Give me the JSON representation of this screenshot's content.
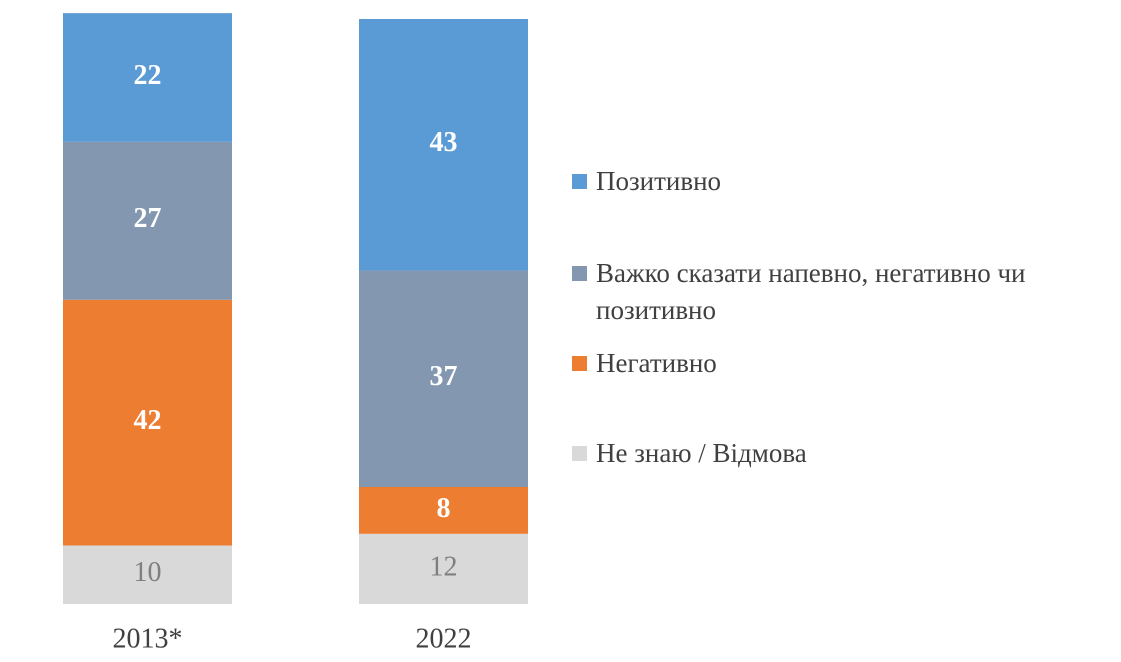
{
  "chart_data": {
    "type": "stacked-bar",
    "categories": [
      "2013*",
      "2022"
    ],
    "series": [
      {
        "name": "Не знаю / Відмова",
        "color": "#d9d9d9",
        "label_color": "#7f7f7f",
        "values": [
          10,
          12
        ]
      },
      {
        "name": "Негативно",
        "color": "#ed7d31",
        "label_color": "#ffffff",
        "values": [
          42,
          8
        ]
      },
      {
        "name": "Важко сказати напевно, негативно чи позитивно",
        "color": "#8497b0",
        "label_color": "#ffffff",
        "values": [
          27,
          37
        ]
      },
      {
        "name": "Позитивно",
        "color": "#5b9bd5",
        "label_color": "#ffffff",
        "values": [
          22,
          43
        ]
      }
    ],
    "ylim": [
      0,
      100
    ]
  }
}
